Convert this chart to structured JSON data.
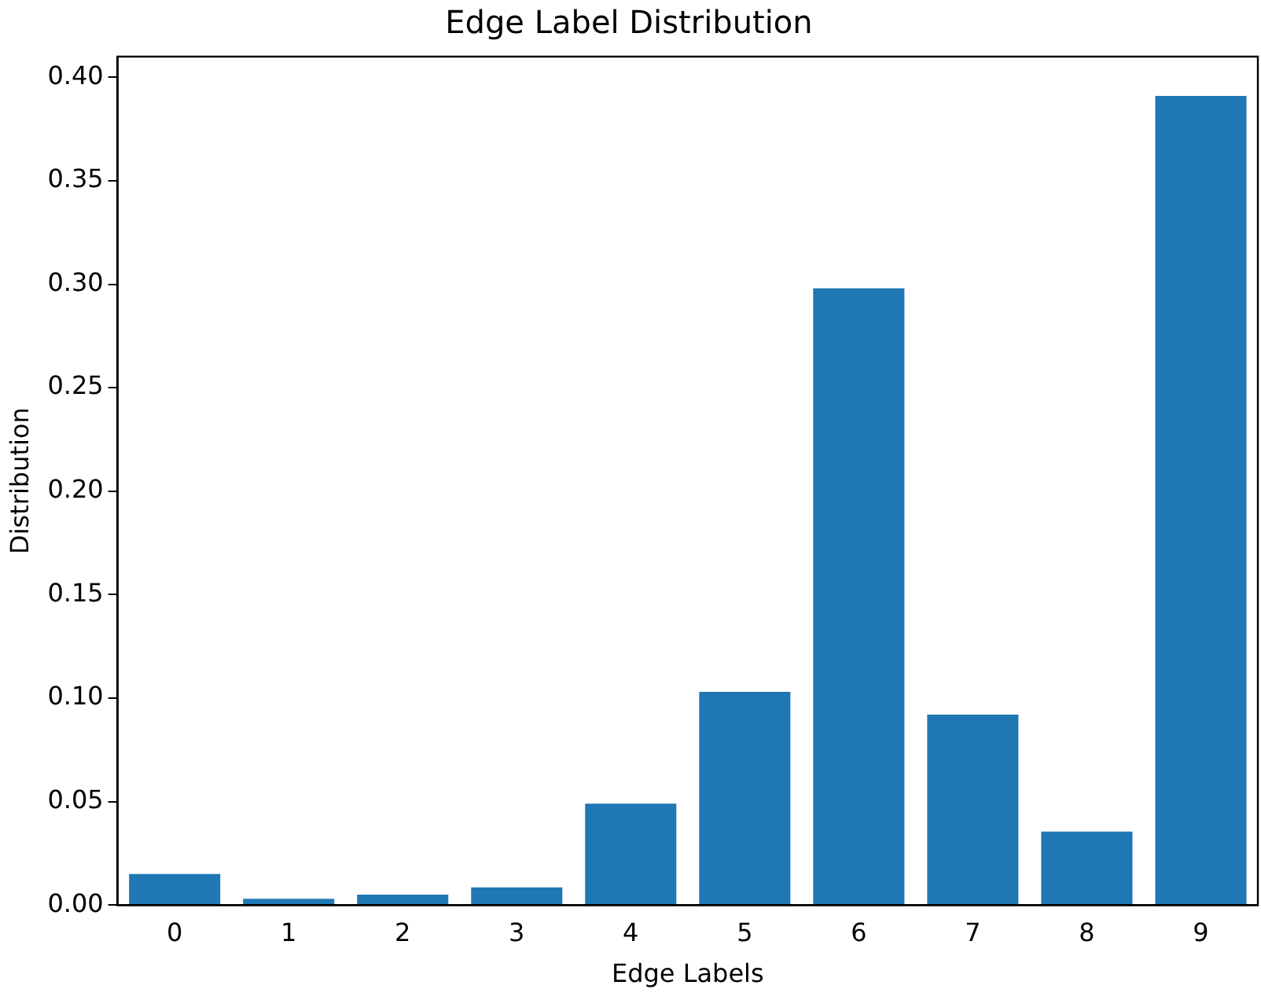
{
  "chart_data": {
    "type": "bar",
    "title": "Edge Label Distribution",
    "xlabel": "Edge Labels",
    "ylabel": "Distribution",
    "categories": [
      "0",
      "1",
      "2",
      "3",
      "4",
      "5",
      "6",
      "7",
      "8",
      "9"
    ],
    "values": [
      0.015,
      0.003,
      0.005,
      0.0085,
      0.049,
      0.103,
      0.298,
      0.092,
      0.0355,
      0.391
    ],
    "color": "#1f77b4",
    "ylim": [
      0,
      0.41
    ],
    "yticks": [
      {
        "value": 0,
        "label": "0.00"
      },
      {
        "value": 0.05,
        "label": "0.05"
      },
      {
        "value": 0.1,
        "label": "0.10"
      },
      {
        "value": 0.15,
        "label": "0.15"
      },
      {
        "value": 0.2,
        "label": "0.20"
      },
      {
        "value": 0.25,
        "label": "0.25"
      },
      {
        "value": 0.3,
        "label": "0.30"
      },
      {
        "value": 0.35,
        "label": "0.35"
      },
      {
        "value": 0.4,
        "label": "0.40"
      }
    ],
    "grid": false,
    "legend": false
  }
}
